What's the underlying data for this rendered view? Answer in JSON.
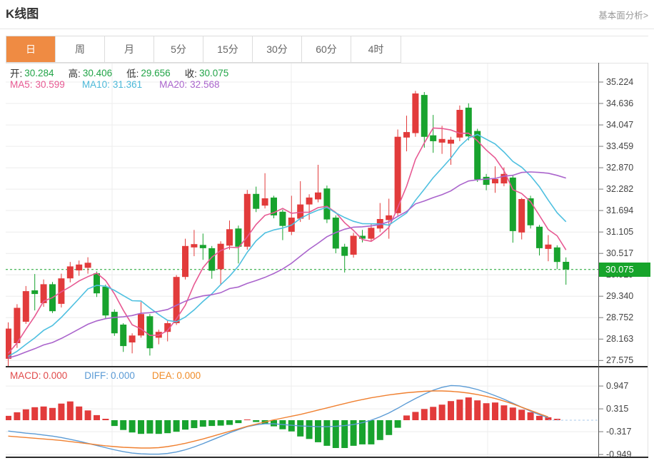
{
  "header": {
    "title": "K线图",
    "link": "基本面分析>"
  },
  "tabs": [
    {
      "label": "日",
      "active": true
    },
    {
      "label": "周",
      "active": false
    },
    {
      "label": "月",
      "active": false
    },
    {
      "label": "5分",
      "active": false
    },
    {
      "label": "15分",
      "active": false
    },
    {
      "label": "30分",
      "active": false
    },
    {
      "label": "60分",
      "active": false
    },
    {
      "label": "4时",
      "active": false
    }
  ],
  "ohlc_row": {
    "open_label": "开:",
    "open_value": "30.284",
    "high_label": "高:",
    "high_value": "30.406",
    "low_label": "低:",
    "low_value": "29.656",
    "close_label": "收:",
    "close_value": "30.075"
  },
  "ma_row": {
    "ma5_label": "MA5:",
    "ma5_value": "30.599",
    "ma10_label": "MA10:",
    "ma10_value": "31.361",
    "ma20_label": "MA20:",
    "ma20_value": "32.568"
  },
  "macd_row": {
    "macd_label": "MACD:",
    "macd_value": "0.000",
    "diff_label": "DIFF:",
    "diff_value": "0.000",
    "dea_label": "DEA:",
    "dea_value": "0.000"
  },
  "price_axis": {
    "labels": [
      "35.224",
      "34.636",
      "34.047",
      "33.459",
      "32.870",
      "32.282",
      "31.694",
      "31.105",
      "30.517",
      "29.929",
      "29.340",
      "28.752",
      "28.163",
      "27.575"
    ],
    "current_price_label": "30.075"
  },
  "macd_axis": {
    "labels": [
      "0.947",
      "0.315",
      "-0.317",
      "-0.949"
    ]
  },
  "colors": {
    "up": "#e23b3b",
    "down": "#18a32e",
    "ma5": "#e75992",
    "ma10": "#4fc0e0",
    "ma20": "#aa64cc",
    "diff": "#5b9bd5",
    "dea": "#f08030",
    "tab_accent": "#ef8b43",
    "badge_green": "#17a42b",
    "grid": "#ececec",
    "dark_border": "#2a2a2a",
    "light_border": "#e3e3e3",
    "axis_line": "#555"
  },
  "chart_data": {
    "type": "candlestick+macd",
    "title": "K线图",
    "price_axis_range": [
      27.44,
      35.75
    ],
    "price_gridlines": [
      35.224,
      34.636,
      34.047,
      33.459,
      32.87,
      32.282,
      31.694,
      31.105,
      30.517,
      29.929,
      29.34,
      28.752,
      28.163,
      27.575
    ],
    "current_price": 30.075,
    "ma_periods": [
      5,
      10,
      20
    ],
    "ma_last_values": {
      "ma5": 30.599,
      "ma10": 31.361,
      "ma20": 32.568
    },
    "candles_ohlc": [
      [
        27.62,
        28.62,
        27.42,
        28.45
      ],
      [
        28.05,
        29.12,
        27.92,
        29.02
      ],
      [
        28.64,
        29.62,
        28.58,
        29.48
      ],
      [
        29.5,
        29.95,
        28.95,
        29.4
      ],
      [
        29.15,
        29.8,
        29.05,
        29.67
      ],
      [
        29.67,
        29.73,
        28.88,
        28.93
      ],
      [
        29.13,
        29.96,
        29.03,
        29.83
      ],
      [
        29.83,
        30.28,
        29.72,
        30.16
      ],
      [
        30.05,
        30.32,
        29.9,
        30.21
      ],
      [
        30.12,
        30.41,
        29.96,
        30.26
      ],
      [
        29.97,
        30.02,
        29.32,
        29.42
      ],
      [
        29.6,
        29.66,
        28.72,
        28.81
      ],
      [
        28.91,
        28.98,
        28.25,
        28.32
      ],
      [
        28.56,
        28.6,
        27.81,
        27.97
      ],
      [
        28.07,
        28.32,
        27.77,
        28.26
      ],
      [
        28.26,
        29.18,
        28.2,
        28.85
      ],
      [
        28.79,
        28.85,
        27.71,
        27.91
      ],
      [
        28.2,
        28.42,
        28.02,
        28.36
      ],
      [
        28.36,
        28.66,
        28.1,
        28.6
      ],
      [
        28.6,
        29.92,
        28.55,
        29.87
      ],
      [
        29.87,
        30.92,
        29.8,
        30.72
      ],
      [
        30.68,
        31.16,
        30.44,
        30.77
      ],
      [
        30.75,
        31.06,
        30.34,
        30.66
      ],
      [
        30.66,
        30.72,
        29.82,
        30.04
      ],
      [
        30.08,
        30.85,
        29.64,
        30.78
      ],
      [
        30.73,
        31.42,
        30.62,
        31.18
      ],
      [
        31.2,
        31.28,
        30.24,
        30.7
      ],
      [
        30.7,
        32.26,
        30.62,
        32.15
      ],
      [
        32.15,
        32.35,
        31.65,
        31.74
      ],
      [
        31.83,
        32.72,
        31.75,
        32.03
      ],
      [
        32.05,
        32.1,
        31.48,
        31.56
      ],
      [
        31.66,
        31.72,
        30.88,
        31.27
      ],
      [
        31.11,
        32.1,
        31.02,
        31.5
      ],
      [
        31.47,
        32.5,
        31.38,
        31.86
      ],
      [
        31.86,
        32.14,
        31.44,
        32.05
      ],
      [
        32.0,
        32.95,
        31.92,
        32.19
      ],
      [
        32.3,
        32.38,
        31.35,
        31.45
      ],
      [
        31.5,
        31.56,
        30.52,
        30.65
      ],
      [
        30.7,
        30.78,
        29.99,
        30.45
      ],
      [
        30.48,
        31.08,
        30.4,
        31.0
      ],
      [
        31.0,
        31.16,
        30.82,
        30.92
      ],
      [
        30.92,
        31.33,
        30.85,
        31.22
      ],
      [
        31.2,
        31.9,
        31.1,
        31.46
      ],
      [
        31.43,
        32.02,
        30.92,
        31.56
      ],
      [
        31.62,
        33.92,
        31.55,
        33.72
      ],
      [
        33.7,
        34.3,
        33.32,
        33.85
      ],
      [
        33.82,
        34.98,
        33.72,
        34.91
      ],
      [
        34.87,
        34.95,
        33.42,
        33.72
      ],
      [
        33.76,
        34.32,
        33.28,
        33.6
      ],
      [
        33.56,
        34.02,
        33.25,
        33.66
      ],
      [
        33.53,
        33.72,
        32.95,
        33.64
      ],
      [
        33.7,
        34.58,
        33.6,
        34.46
      ],
      [
        34.52,
        34.64,
        33.62,
        33.73
      ],
      [
        33.88,
        33.94,
        32.48,
        32.55
      ],
      [
        32.62,
        32.7,
        32.25,
        32.4
      ],
      [
        32.44,
        32.91,
        32.18,
        32.56
      ],
      [
        32.44,
        32.88,
        32.36,
        32.7
      ],
      [
        32.6,
        32.66,
        30.81,
        31.13
      ],
      [
        31.09,
        32.04,
        30.9,
        32.01
      ],
      [
        32.03,
        32.1,
        31.2,
        31.29
      ],
      [
        31.25,
        31.3,
        30.46,
        30.66
      ],
      [
        30.64,
        31.02,
        30.3,
        30.76
      ],
      [
        30.68,
        30.74,
        30.08,
        30.28
      ],
      [
        30.284,
        30.406,
        29.656,
        30.075
      ]
    ],
    "macd": {
      "gridlines": [
        0.947,
        0.315,
        -0.317,
        -0.949
      ],
      "last_values": {
        "macd": 0.0,
        "diff": 0.0,
        "dea": 0.0
      },
      "hist": [
        0.12,
        0.22,
        0.3,
        0.36,
        0.38,
        0.34,
        0.46,
        0.52,
        0.38,
        0.27,
        0.14,
        0.04,
        -0.16,
        -0.27,
        -0.34,
        -0.38,
        -0.37,
        -0.38,
        -0.36,
        -0.32,
        -0.26,
        -0.22,
        -0.18,
        -0.16,
        -0.15,
        -0.13,
        -0.08,
        0.02,
        -0.05,
        -0.1,
        -0.17,
        -0.25,
        -0.31,
        -0.45,
        -0.52,
        -0.61,
        -0.71,
        -0.77,
        -0.77,
        -0.71,
        -0.67,
        -0.67,
        -0.55,
        -0.41,
        -0.21,
        0.13,
        0.23,
        0.31,
        0.37,
        0.43,
        0.53,
        0.57,
        0.63,
        0.55,
        0.47,
        0.49,
        0.41,
        0.35,
        0.29,
        0.22,
        0.12,
        0.08,
        0.04,
        0.0
      ],
      "diff": [
        -0.3,
        -0.33,
        -0.36,
        -0.38,
        -0.41,
        -0.44,
        -0.48,
        -0.53,
        -0.58,
        -0.64,
        -0.7,
        -0.76,
        -0.82,
        -0.87,
        -0.91,
        -0.93,
        -0.94,
        -0.94,
        -0.92,
        -0.88,
        -0.82,
        -0.74,
        -0.65,
        -0.55,
        -0.45,
        -0.35,
        -0.26,
        -0.18,
        -0.13,
        -0.1,
        -0.1,
        -0.12,
        -0.14,
        -0.16,
        -0.17,
        -0.18,
        -0.18,
        -0.17,
        -0.15,
        -0.12,
        -0.07,
        0.0,
        0.09,
        0.2,
        0.33,
        0.47,
        0.6,
        0.72,
        0.83,
        0.91,
        0.96,
        0.95,
        0.91,
        0.85,
        0.77,
        0.68,
        0.58,
        0.47,
        0.36,
        0.25,
        0.15,
        0.07,
        0.02,
        0.0
      ],
      "dea": [
        -0.44,
        -0.46,
        -0.48,
        -0.5,
        -0.52,
        -0.54,
        -0.56,
        -0.59,
        -0.62,
        -0.65,
        -0.68,
        -0.71,
        -0.73,
        -0.75,
        -0.76,
        -0.77,
        -0.77,
        -0.76,
        -0.73,
        -0.69,
        -0.64,
        -0.58,
        -0.52,
        -0.45,
        -0.38,
        -0.31,
        -0.24,
        -0.17,
        -0.11,
        -0.05,
        0.01,
        0.06,
        0.11,
        0.16,
        0.22,
        0.28,
        0.34,
        0.4,
        0.46,
        0.52,
        0.57,
        0.62,
        0.66,
        0.7,
        0.73,
        0.76,
        0.78,
        0.8,
        0.81,
        0.81,
        0.8,
        0.78,
        0.75,
        0.71,
        0.66,
        0.6,
        0.53,
        0.45,
        0.36,
        0.27,
        0.18,
        0.09,
        0.03,
        0.0
      ]
    }
  }
}
